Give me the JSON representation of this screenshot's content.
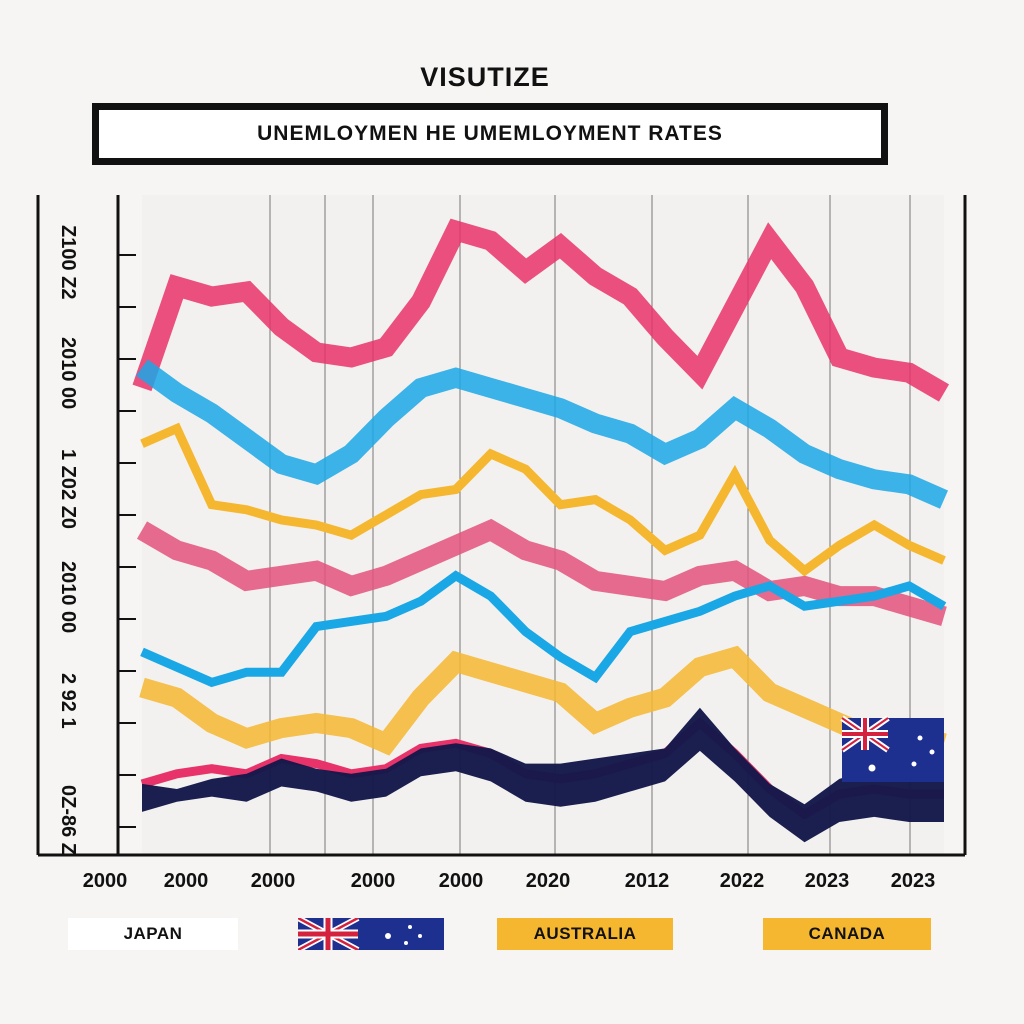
{
  "chart_data": {
    "type": "line",
    "title": "VISUTIZE",
    "subtitle": "UNEMLOYMEN HE  UMEMLOYMENT RATES",
    "y_tick_labels": [
      "Z100 Z2",
      "2010 00",
      "1 Z02 Z0",
      "2010 00",
      "2 92 1",
      "0Z-86 Z"
    ],
    "x_tick_labels": [
      "2000",
      "2000",
      "2000",
      "2000",
      "2000",
      "2020",
      "2012",
      "2022",
      "2023",
      "2023"
    ],
    "x": [
      2000,
      2001,
      2002,
      2003,
      2004,
      2005,
      2006,
      2007,
      2008,
      2009,
      2010,
      2011,
      2012,
      2013,
      2014,
      2015,
      2016,
      2017,
      2018,
      2019,
      2020,
      2021,
      2022,
      2023
    ],
    "grid": true,
    "legend_placement": "bottom",
    "series": [
      {
        "color": "#e8336a",
        "style": "band",
        "values": [
          9.2,
          11.2,
          11.0,
          11.1,
          10.4,
          9.9,
          9.8,
          10.0,
          10.9,
          12.3,
          12.1,
          11.5,
          12.0,
          11.4,
          11.0,
          10.2,
          9.5,
          10.8,
          12.1,
          11.2,
          9.8,
          9.6,
          9.5,
          9.1
        ]
      },
      {
        "color": "#1aa7e6",
        "style": "band",
        "values": [
          9.6,
          9.1,
          8.7,
          8.2,
          7.7,
          7.5,
          7.9,
          8.6,
          9.2,
          9.4,
          9.2,
          9.0,
          8.8,
          8.5,
          8.3,
          7.9,
          8.2,
          8.8,
          8.4,
          7.9,
          7.6,
          7.4,
          7.3,
          7.0
        ]
      },
      {
        "color": "#f5b730",
        "style": "line",
        "values": [
          8.1,
          8.4,
          6.9,
          6.8,
          6.6,
          6.5,
          6.3,
          6.7,
          7.1,
          7.2,
          7.9,
          7.6,
          6.9,
          7.0,
          6.6,
          6.0,
          6.3,
          7.5,
          6.2,
          5.6,
          6.1,
          6.5,
          6.1,
          5.8
        ]
      },
      {
        "color": "#e2527c",
        "style": "band",
        "values": [
          6.4,
          6.0,
          5.8,
          5.4,
          5.5,
          5.6,
          5.3,
          5.5,
          5.8,
          6.1,
          6.4,
          6.0,
          5.8,
          5.4,
          5.3,
          5.2,
          5.5,
          5.6,
          5.2,
          5.3,
          5.1,
          5.1,
          4.9,
          4.7
        ]
      },
      {
        "color": "#1aa7e6",
        "style": "line",
        "values": [
          4.0,
          3.7,
          3.4,
          3.6,
          3.6,
          4.5,
          4.6,
          4.7,
          5.0,
          5.5,
          5.1,
          4.4,
          3.9,
          3.5,
          4.4,
          4.6,
          4.8,
          5.1,
          5.3,
          4.9,
          5.0,
          5.1,
          5.3,
          4.9
        ]
      },
      {
        "color": "#f5b730",
        "style": "band",
        "values": [
          3.3,
          3.1,
          2.6,
          2.3,
          2.5,
          2.6,
          2.5,
          2.2,
          3.1,
          3.8,
          3.6,
          3.4,
          3.2,
          2.6,
          2.9,
          3.1,
          3.7,
          3.9,
          3.2,
          2.9,
          2.6,
          2.3,
          2.4,
          2.2
        ]
      },
      {
        "color": "#e8336a",
        "style": "line",
        "values": [
          1.4,
          1.6,
          1.7,
          1.6,
          1.9,
          1.8,
          1.6,
          1.7,
          2.1,
          2.2,
          2.0,
          1.6,
          1.5,
          1.6,
          1.8,
          2.0,
          2.6,
          2.0,
          1.3,
          0.8,
          1.2,
          1.3,
          1.2,
          1.2
        ]
      },
      {
        "color": "#14184a",
        "style": "area",
        "values": [
          1.4,
          1.3,
          1.5,
          1.6,
          1.9,
          1.7,
          1.6,
          1.7,
          2.1,
          2.2,
          2.1,
          1.8,
          1.8,
          1.9,
          2.0,
          2.1,
          2.9,
          2.1,
          1.4,
          1.0,
          1.5,
          1.7,
          1.6,
          1.6
        ]
      }
    ],
    "legend": [
      {
        "label": "JAPAN",
        "bg": "#ffffff"
      },
      {
        "label": "",
        "bg": "flag-au"
      },
      {
        "label": "AUSTRALIA",
        "bg": "#f5b730"
      },
      {
        "label": "CANADA",
        "bg": "#f5b730"
      }
    ]
  }
}
